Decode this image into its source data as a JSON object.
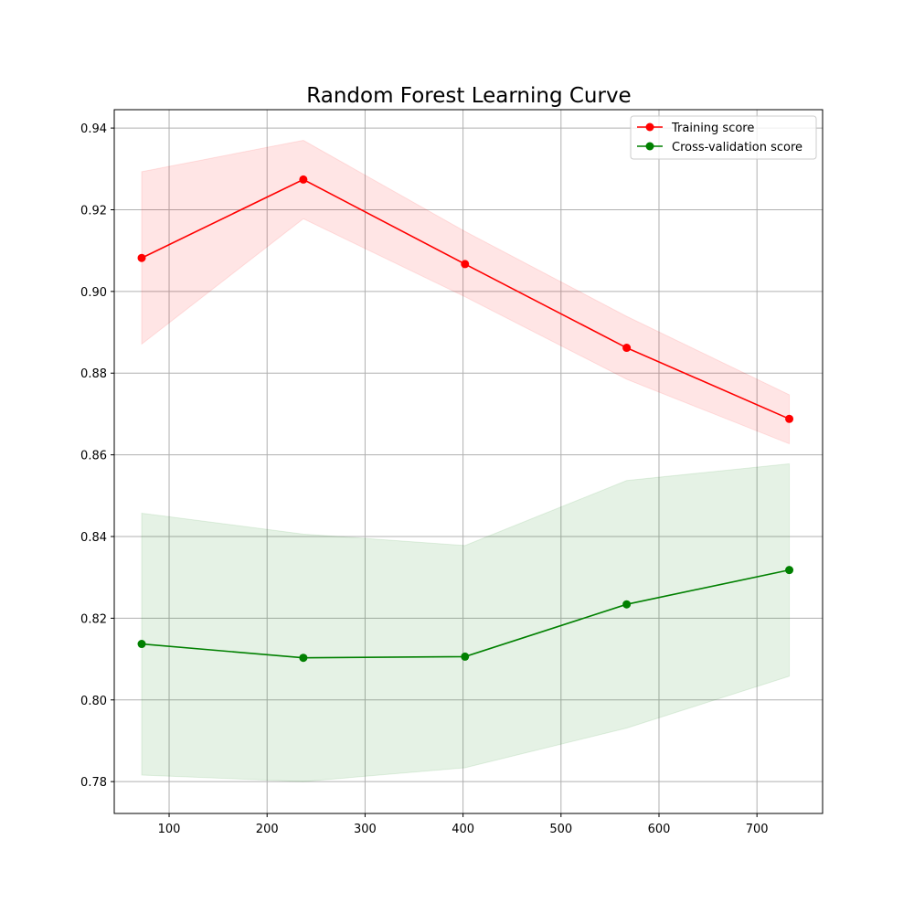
{
  "chart_data": {
    "type": "line",
    "title": "Random Forest Learning Curve",
    "xlabel": "",
    "ylabel": "",
    "xlim": [
      44,
      767
    ],
    "ylim": [
      0.7722,
      0.9445
    ],
    "xticks": [
      100,
      200,
      300,
      400,
      500,
      600,
      700
    ],
    "xtick_labels": [
      "100",
      "200",
      "300",
      "400",
      "500",
      "600",
      "700"
    ],
    "yticks": [
      0.78,
      0.8,
      0.82,
      0.84,
      0.86,
      0.88,
      0.9,
      0.92,
      0.94
    ],
    "ytick_labels": [
      "0.78",
      "0.80",
      "0.82",
      "0.84",
      "0.86",
      "0.88",
      "0.90",
      "0.92",
      "0.94"
    ],
    "grid": true,
    "legend_position": "top-right",
    "x": [
      72,
      237,
      402,
      567,
      733
    ],
    "series": [
      {
        "name": "Training score",
        "color": "#ff0000",
        "band_color": "#ff0000",
        "values": [
          0.9082,
          0.9274,
          0.9067,
          0.8862,
          0.8688
        ],
        "upper": [
          0.9293,
          0.937,
          0.9147,
          0.8939,
          0.8747
        ],
        "lower": [
          0.8871,
          0.9178,
          0.8987,
          0.8785,
          0.8627
        ]
      },
      {
        "name": "Cross-validation score",
        "color": "#008000",
        "band_color": "#008000",
        "values": [
          0.8137,
          0.8103,
          0.8106,
          0.8234,
          0.8318
        ],
        "upper": [
          0.8457,
          0.8406,
          0.8378,
          0.8537,
          0.8578
        ],
        "lower": [
          0.7816,
          0.78,
          0.7834,
          0.7931,
          0.8058
        ]
      }
    ]
  }
}
